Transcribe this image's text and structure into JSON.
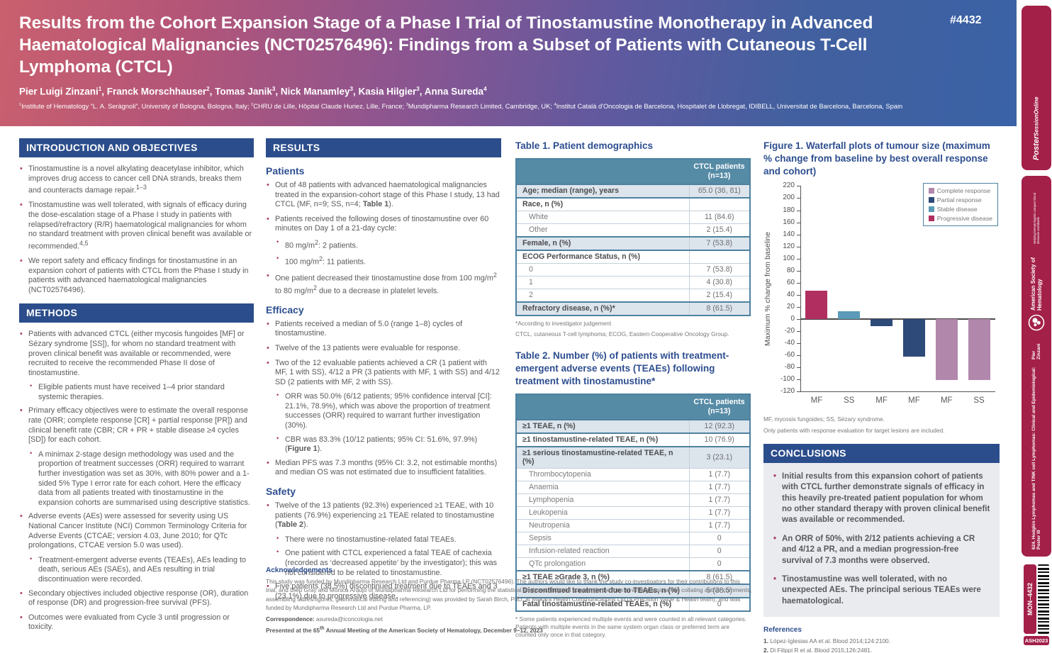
{
  "colors": {
    "header_gradient_left": "#c9606e",
    "header_gradient_right": "#3a62a6",
    "section_bar_navy": "#2b4d8c",
    "heading_blue": "#2d4e8f",
    "table_header_teal": "#568ba6",
    "table_row_shade": "#dce4ec",
    "bullet_crimson": "#a83a68",
    "sidebar_crimson": "#a32049",
    "body_gray": "#595a5c"
  },
  "header": {
    "badge": "#4432",
    "title": "Results from the Cohort Expansion Stage of a Phase I Trial of Tinostamustine Monotherapy in Advanced Haematological Malignancies (NCT02576496): Findings from a Subset of Patients with Cutaneous T-Cell Lymphoma (CTCL)",
    "authors": "Pier Luigi Zinzani^{1}, Franck Morschhauser^{2}, Tomas Janik^{3}, Nick Manamley^{3}, Kasia Hilgier^{3}, Anna Sureda^{4}",
    "affiliations": "^{1}Institute of Hematology “L. A. Seràgnoli”, University of Bologna, Bologna, Italy; ^{2}CHRU de Lille, Hôpital Claude Huriez, Lille, France; ^{3}Mundipharma Research Limited, Cambridge, UK; ^{4}Institut Català d'Oncologia de Barcelona, Hospitalet de Llobregat, IDIBELL, Universitat de Barcelona, Barcelona, Spain"
  },
  "sections": {
    "intro": {
      "title": "INTRODUCTION AND OBJECTIVES",
      "bullets": [
        {
          "text": "Tinostamustine is a novel alkylating deacetylase inhibitor, which improves drug access to cancer cell DNA strands, breaks them and counteracts damage repair.^{1–3}"
        },
        {
          "text": "Tinostamustine was well tolerated, with signals of efficacy during the dose-escalation stage of a Phase I study in patients with relapsed/refractory (R/R) haematological malignancies for whom no standard treatment with proven clinical benefit was available or recommended.^{4,5}"
        },
        {
          "text": "We report safety and efficacy findings for tinostamustine in an expansion cohort of patients with CTCL from the Phase I study in patients with advanced haematological malignancies (NCT02576496)."
        }
      ]
    },
    "methods": {
      "title": "METHODS",
      "bullets": [
        {
          "text": "Patients with advanced CTCL (either mycosis fungoides [MF] or Sézary syndrome [SS]), for whom no standard treatment with proven clinical benefit was available or recommended, were recruited to receive the recommended Phase II dose of tinostamustine.",
          "sub": [
            {
              "text": "Eligible patients must have received 1–4 prior standard systemic therapies."
            }
          ]
        },
        {
          "text": "Primary efficacy objectives were to estimate the overall response rate (ORR; complete response [CR] + partial response [PR]) and clinical benefit rate (CBR; CR + PR + stable disease ≥4 cycles [SD]) for each cohort.",
          "sub": [
            {
              "text": "A minimax 2-stage design methodology was used and the proportion of treatment successes (ORR) required to warrant further investigation was set as 30%, with 80% power and a 1-sided 5% Type I error rate for each cohort. Here the efficacy data from all patients treated with tinostamustine in the expansion cohorts are summarised using descriptive statistics."
            }
          ]
        },
        {
          "text": "Adverse events (AEs) were assessed for severity using US National Cancer Institute (NCI) Common Terminology Criteria for Adverse Events (CTCAE; version 4.03, June 2010; for QTc prolongations, CTCAE version 5.0 was used).",
          "sub": [
            {
              "text": "Treatment-emergent adverse events (TEAEs), AEs leading to death, serious AEs (SAEs), and AEs resulting in trial discontinuation were recorded."
            }
          ]
        },
        {
          "text": "Secondary objectives included objective response (OR), duration of response (DR) and progression-free survival (PFS)."
        },
        {
          "text": "Outcomes were evaluated from Cycle 3 until progression or toxicity."
        }
      ]
    },
    "results": {
      "title": "RESULTS",
      "patients": {
        "heading": "Patients",
        "bullets": [
          {
            "text": "Out of 48 patients with advanced haematological malignancies treated in the expansion-cohort stage of this Phase I study, 13 had CTCL (MF, n=9; SS, n=4; **Table 1**)."
          },
          {
            "text": "Patients received the following doses of tinostamustine over 60 minutes on Day 1 of a 21-day cycle:",
            "sub": [
              {
                "text": "80 mg/m^{2}: 2 patients."
              },
              {
                "text": "100 mg/m^{2}: 11 patients."
              }
            ]
          },
          {
            "text": "One patient decreased their tinostamustine dose from 100 mg/m^{2} to 80 mg/m^{2} due to a decrease in platelet levels."
          }
        ]
      },
      "efficacy": {
        "heading": "Efficacy",
        "bullets": [
          {
            "text": "Patients received a median of 5.0 (range 1–8) cycles of tinostamustine."
          },
          {
            "text": "Twelve of the 13 patients were evaluable for response."
          },
          {
            "text": "Two of the 12 evaluable patients achieved a CR (1 patient with MF, 1 with SS), 4/12 a PR (3 patients with MF, 1 with SS) and 4/12 SD (2 patients with MF, 2 with SS).",
            "sub": [
              {
                "text": "ORR was 50.0% (6/12 patients; 95% confidence interval [CI]: 21.1%, 78.9%), which was above the proportion of treatment successes (ORR) required to warrant further investigation (30%)."
              },
              {
                "text": "CBR was 83.3% (10/12 patients; 95% CI: 51.6%, 97.9%) (**Figure 1**)."
              }
            ]
          },
          {
            "text": "Median PFS was 7.3 months (95% CI: 3.2, not estimable months) and median OS was not estimated due to insufficient fatalities."
          }
        ]
      },
      "safety": {
        "heading": "Safety",
        "bullets": [
          {
            "text": "Twelve of the 13 patients (92.3%) experienced ≥1 TEAE, with 10 patients (76.9%) experiencing ≥1 TEAE related to tinostamustine (**Table 2**).",
            "sub": [
              {
                "text": "There were no tinostamustine-related fatal TEAEs."
              },
              {
                "text": "One patient with CTCL experienced a fatal TEAE of cachexia (recorded as ‘decreased appetite’ by the investigator); this was not considered to be related to tinostamustine."
              }
            ]
          },
          {
            "text": "Five patients (38.5%) discontinued treatment due to TEAEs and 3 (23.1%) due to progressive disease."
          }
        ]
      }
    },
    "conclusions": {
      "title": "CONCLUSIONS",
      "bullets": [
        {
          "text": "Initial results from this expansion cohort of patients with CTCL further demonstrate signals of efficacy in this heavily pre-treated patient population for whom no other standard therapy with proven clinical benefit was available or recommended."
        },
        {
          "text": "An ORR of 50%, with 2/12 patients achieving a CR and 4/12 a PR, and a median progression-free survival of 7.3 months were observed."
        },
        {
          "text": "Tinostamustine was well tolerated, with no unexpected AEs. The principal serious TEAEs were haematological."
        }
      ]
    }
  },
  "tables": {
    "table1": {
      "title": "Table 1. Patient demographics",
      "col_header": "CTCL patients\n(n=13)",
      "rows": [
        {
          "label": "Age; median (range), years",
          "value": "65.0 (36, 81)",
          "group": true,
          "shaded": true
        },
        {
          "label": "Race, n (%)",
          "value": "",
          "group": true
        },
        {
          "label": "White",
          "value": "11 (84.6)",
          "indent": true
        },
        {
          "label": "Other",
          "value": "2 (15.4)",
          "indent": true
        },
        {
          "label": "Female, n (%)",
          "value": "7 (53.8)",
          "group": true,
          "shaded": true
        },
        {
          "label": "ECOG Performance Status, n (%)",
          "value": "",
          "group": true
        },
        {
          "label": "0",
          "value": "7 (53.8)",
          "indent": true
        },
        {
          "label": "1",
          "value": "4 (30.8)",
          "indent": true
        },
        {
          "label": "2",
          "value": "2 (15.4)",
          "indent": true
        },
        {
          "label": "Refractory disease, n (%)*",
          "value": "8 (61.5)",
          "group": true,
          "shaded": true
        }
      ],
      "footnotes": [
        "*According to investigator judgement",
        "CTCL, cutaneous T-cell lymphoma; ECOG, Eastern Cooperative Oncology Group."
      ]
    },
    "table2": {
      "title": "Table 2. Number (%) of patients with treatment-emergent adverse events (TEAEs) following treatment with tinostamustine*",
      "col_header": "CTCL patients\n(n=13)",
      "rows": [
        {
          "label": "≥1 TEAE, n (%)",
          "value": "12 (92.3)",
          "group": true,
          "shaded": true
        },
        {
          "label": "≥1 tinostamustine-related TEAE, n (%)",
          "value": "10 (76.9)",
          "group": true
        },
        {
          "label": "≥1 serious tinostamustine-related TEAE, n (%)",
          "value": "3 (23.1)",
          "group": true,
          "shaded": true
        },
        {
          "label": "Thrombocytopenia",
          "value": "1 (7.7)",
          "indent": true
        },
        {
          "label": "Anaemia",
          "value": "1 (7.7)",
          "indent": true
        },
        {
          "label": "Lymphopenia",
          "value": "1 (7.7)",
          "indent": true
        },
        {
          "label": "Leukopenia",
          "value": "1 (7.7)",
          "indent": true
        },
        {
          "label": "Neutropenia",
          "value": "1 (7.7)",
          "indent": true
        },
        {
          "label": "Sepsis",
          "value": "0",
          "indent": true
        },
        {
          "label": "Infusion-related reaction",
          "value": "0",
          "indent": true
        },
        {
          "label": "QTc prolongation",
          "value": "0",
          "indent": true
        },
        {
          "label": "≥1 TEAE ≥Grade 3, n (%)",
          "value": "8 (61.5)",
          "group": true
        },
        {
          "label": "Discontinued treatment due to TEAEs, n (%)",
          "value": "5 (38.5)",
          "group": true,
          "shaded": true
        },
        {
          "label": "Fatal tinostamustine-related TEAEs, n (%)",
          "value": "0",
          "group": true
        }
      ],
      "footnotes": [
        "* Some patients experienced multiple events and were counted in all relevant categories. Patients with multiple events in the same system organ class or preferred term are counted only once in that category."
      ]
    }
  },
  "chart_data": {
    "type": "bar",
    "title": "Figure 1. Waterfall plots of tumour size (maximum % change from baseline by best overall response and cohort)",
    "categories": [
      "MF",
      "SS",
      "MF",
      "MF",
      "MF",
      "SS"
    ],
    "values": [
      47,
      13,
      -12,
      -62,
      -101,
      -101
    ],
    "responses": [
      "Progressive disease",
      "Stable disease",
      "Partial response",
      "Partial response",
      "Complete response",
      "Complete response"
    ],
    "xlabel": "",
    "ylabel": "Maximum % change from baseline",
    "ylim": [
      -120,
      220
    ],
    "ytick_step": 20,
    "grid": false,
    "legend_position": "top-right",
    "legend": [
      {
        "label": "Complete response",
        "color": "#b287ac"
      },
      {
        "label": "Partial response",
        "color": "#2e4a78"
      },
      {
        "label": "Stable disease",
        "color": "#5b9ab8"
      },
      {
        "label": "Progressive disease",
        "color": "#b02f60"
      }
    ],
    "footnotes": [
      "MF, mycosis fungoides; SS, Sézary syndrome.",
      "Only patients with response evaluation for target lesions are included."
    ]
  },
  "acknowledgements": {
    "heading": "Acknowledgements",
    "body": "This study was funded by Mundipharma Research Ltd and Purdue Pharma LP (NCT02576496). The authors would like to thank the study co-investigators for their contributions to this trial, and Diep Gray and Monica Araujo of Mundipharma Research Ltd for performing the statistical analyses. Editorial support (in the form of writing assistance, collating author comments, assembling tables/figures, grammatical editing and referencing) was provided by Sarah Birch, PhD, at Makara Health Communications Ltd (a Precision Value & Health team), and was funded by Mundipharma Research Ltd and Purdue Pharma, LP.",
    "correspondence_label": "Correspondence:",
    "correspondence_value": "asureda@iconcologia.net",
    "presented": "Presented at the 65^{th} Annual Meeting of the American Society of Hematology, December 9–12, 2023"
  },
  "references": {
    "heading": "References",
    "items": [
      "López-Iglesias AA et al. Blood 2014;124:2100.",
      "Di Filippi R et al. Blood 2015;126:2481.",
      "Yan S et al. Cancer Res 2012;72(Suppl 1):Abstract 2741.",
      "Zinzani PL et al. HemaSphere 2019;3(S1):102.",
      "Pinto A et al. Hematol Oncol 2019;37(S2):Abstract 273."
    ]
  },
  "sidebar": {
    "poster_session": {
      "line1": "Poster",
      "line2": "SessionOnline"
    },
    "ash": {
      "name": "American Society of Hematology",
      "tagline": "Helping hematologists conquer blood diseases worldwide"
    },
    "session_track": "624. Hodgkin Lymphomas and T/NK cell Lymphomas: Clinical and Epidemiological: Poster III",
    "presenter": "Pier Zinzani",
    "poster_code": "MON–4432",
    "event_tag": "ASH2023"
  }
}
